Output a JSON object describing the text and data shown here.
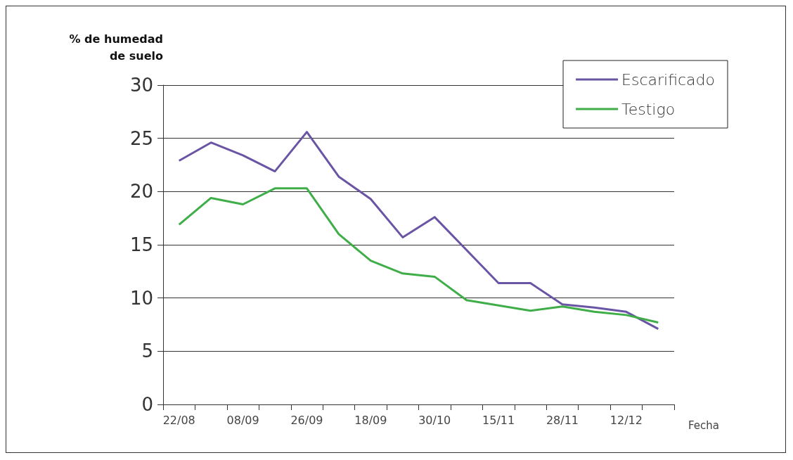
{
  "chart_data": {
    "type": "line",
    "xlabel": "Fecha",
    "ylabel": "% de humedad\nde suelo",
    "categories": [
      "22/08",
      null,
      "08/09",
      null,
      "26/09",
      null,
      "18/09",
      null,
      "30/10",
      null,
      "15/11",
      null,
      "28/11",
      null,
      "12/12",
      null
    ],
    "series": [
      {
        "name": "Escarificado",
        "color": "#6a55a5",
        "values": [
          22.9,
          24.6,
          23.4,
          21.9,
          25.6,
          21.4,
          19.3,
          15.7,
          17.6,
          14.5,
          11.4,
          11.4,
          9.4,
          9.1,
          8.7,
          7.1
        ]
      },
      {
        "name": "Testigo",
        "color": "#3fae49",
        "values": [
          16.9,
          19.4,
          18.8,
          20.3,
          20.3,
          16.0,
          13.5,
          12.3,
          12.0,
          9.8,
          9.3,
          8.8,
          9.2,
          8.7,
          8.4,
          7.7
        ]
      }
    ],
    "ylim": [
      0,
      30
    ],
    "yticks": [
      0,
      5,
      10,
      15,
      20,
      25,
      30
    ],
    "grid": "y",
    "legend": "top right",
    "marker": "none",
    "line_style": "solid"
  }
}
